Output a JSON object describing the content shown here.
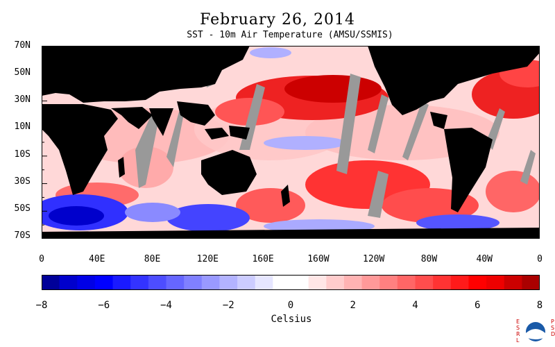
{
  "header": {
    "title": "February 26, 2014",
    "subtitle": "SST - 10m Air Temperature (AMSU/SSMIS)"
  },
  "map": {
    "lat_labels": [
      "70N",
      "50N",
      "30N",
      "10N",
      "10S",
      "30S",
      "50S",
      "70S"
    ],
    "lon_labels": [
      "0",
      "40E",
      "80E",
      "120E",
      "160E",
      "160W",
      "120W",
      "80W",
      "40W",
      "0"
    ],
    "land_color": "#000000",
    "no_data_color": "#999999"
  },
  "colorbar": {
    "tick_labels": [
      "−8",
      "−6",
      "−4",
      "−2",
      "0",
      "2",
      "4",
      "6",
      "8"
    ],
    "units": "Celsius",
    "range": [
      -8,
      8
    ],
    "colors": [
      "#000099",
      "#0000cc",
      "#0000e6",
      "#0000ff",
      "#1a1aff",
      "#3333ff",
      "#4d4dff",
      "#6666ff",
      "#8080ff",
      "#9999ff",
      "#b3b3ff",
      "#ccccff",
      "#e6e6ff",
      "#ffffff",
      "#ffffff",
      "#ffe6e6",
      "#ffcccc",
      "#ffb3b3",
      "#ff9999",
      "#ff8080",
      "#ff6666",
      "#ff4d4d",
      "#ff3333",
      "#ff1a1a",
      "#ff0000",
      "#ee0000",
      "#cc0000",
      "#aa0000"
    ]
  },
  "logo": {
    "left_letters": "ESRL",
    "right_letters": "PSD"
  }
}
